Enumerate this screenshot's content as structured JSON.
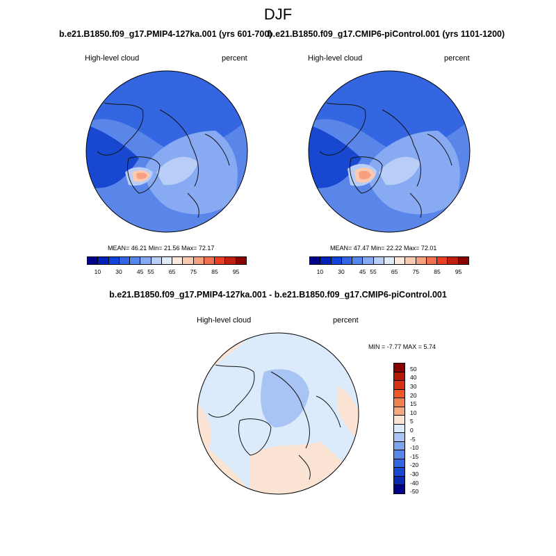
{
  "title": "DJF",
  "panels": [
    {
      "id": "left",
      "title": "b.e21.B1850.f09_g17.PMIP4-127ka.001 (yrs 601-700)",
      "variable": "High-level cloud",
      "units": "percent",
      "stats": "MEAN=  46.21  Min=  21.56  Max=  72.17"
    },
    {
      "id": "right",
      "title": "b.e21.B1850.f09_g17.CMIP6-piControl.001 (yrs 1101-1200)",
      "variable": "High-level cloud",
      "units": "percent",
      "stats": "MEAN=  47.47  Min=  22.22  Max=  72.01"
    },
    {
      "id": "diff",
      "title": "b.e21.B1850.f09_g17.PMIP4-127ka.001 - b.e21.B1850.f09_g17.CMIP6-piControl.001",
      "variable": "High-level cloud",
      "units": "percent",
      "stats": "MIN =  -7.77 MAX =   5.74"
    }
  ],
  "colorbar_abs": {
    "tick_labels": [
      "10",
      "30",
      "45",
      "55",
      "65",
      "75",
      "85",
      "95"
    ],
    "colors": [
      "#00008c",
      "#0022bb",
      "#1144dd",
      "#3366e6",
      "#5588ee",
      "#88aaf2",
      "#b8cef8",
      "#e0ecfc",
      "#fde8dc",
      "#fbc8b0",
      "#f7a080",
      "#f07050",
      "#e84020",
      "#c02010",
      "#880000"
    ]
  },
  "colorbar_diff": {
    "tick_labels": [
      "50",
      "40",
      "30",
      "20",
      "15",
      "10",
      "5",
      "0",
      "-5",
      "-10",
      "-15",
      "-20",
      "-30",
      "-40",
      "-50"
    ],
    "colors": [
      "#880000",
      "#b01808",
      "#d83018",
      "#f05828",
      "#f08050",
      "#f4a880",
      "#fce4d4",
      "#dcebfc",
      "#a8c4f4",
      "#7fa4ee",
      "#5a86ea",
      "#3366e0",
      "#1848d0",
      "#0a2ab0",
      "#000088"
    ]
  }
}
